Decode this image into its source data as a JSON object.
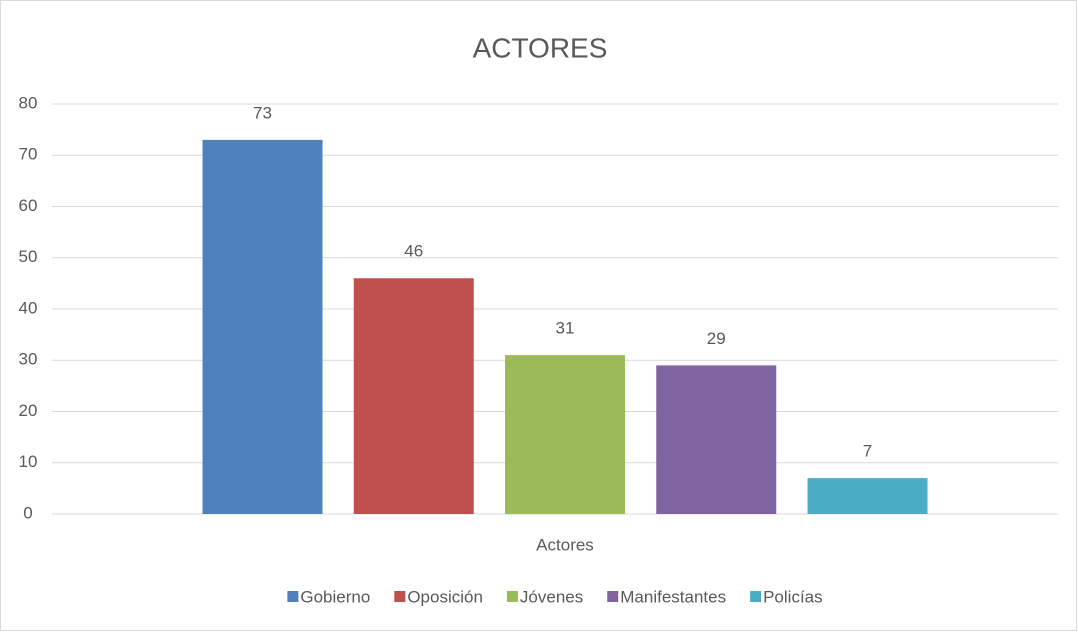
{
  "chart_data": {
    "type": "bar",
    "title": "ACTORES",
    "categories": [
      "Actores"
    ],
    "series": [
      {
        "name": "Gobierno",
        "color": "#4f81bd",
        "values": [
          73
        ]
      },
      {
        "name": "Oposición",
        "color": "#c0504d",
        "values": [
          46
        ]
      },
      {
        "name": "Jóvenes",
        "color": "#9bbb59",
        "values": [
          31
        ]
      },
      {
        "name": "Manifestantes",
        "color": "#8064a2",
        "values": [
          29
        ]
      },
      {
        "name": "Policías",
        "color": "#4bacc6",
        "values": [
          7
        ]
      }
    ],
    "ylim": [
      0,
      80
    ],
    "yticks": [
      0,
      10,
      20,
      30,
      40,
      50,
      60,
      70,
      80
    ],
    "grid": true,
    "data_labels": true,
    "legend": "bottom"
  }
}
